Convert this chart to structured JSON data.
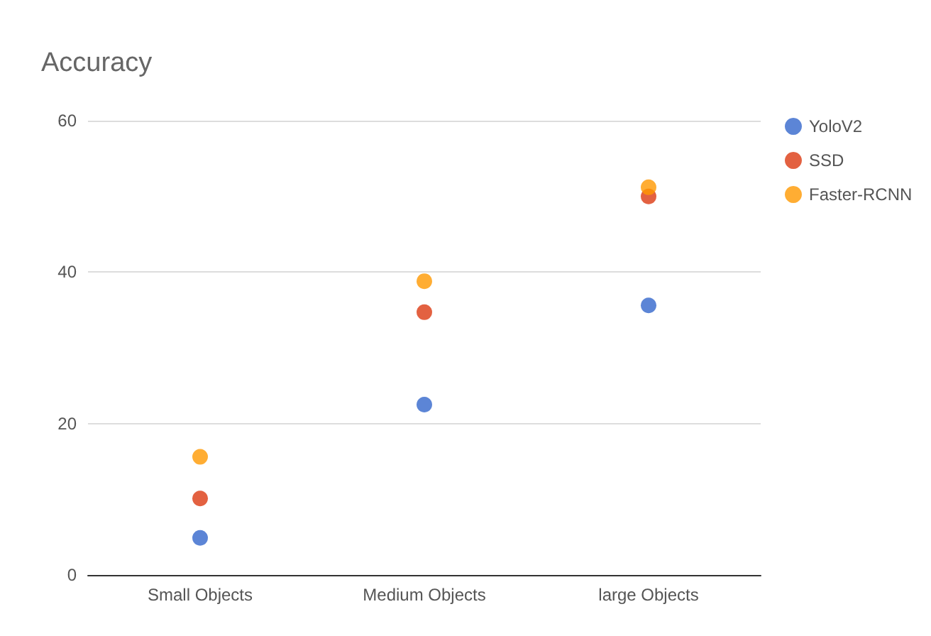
{
  "chart_data": {
    "type": "scatter",
    "title": "Accuracy",
    "categories": [
      "Small Objects",
      "Medium Objects",
      "large Objects"
    ],
    "series": [
      {
        "name": "YoloV2",
        "color": "#3366cc",
        "values": [
          4.9,
          22.5,
          35.6
        ]
      },
      {
        "name": "SSD",
        "color": "#dc3912",
        "values": [
          10.1,
          34.7,
          50
        ]
      },
      {
        "name": "Faster-RCNN",
        "color": "#ff9900",
        "values": [
          15.6,
          38.8,
          51.2
        ]
      }
    ],
    "ylim": [
      0,
      60
    ],
    "yticks": [
      0,
      20,
      40,
      60
    ],
    "grid": "y",
    "legend": "top right",
    "marker": "circle"
  }
}
